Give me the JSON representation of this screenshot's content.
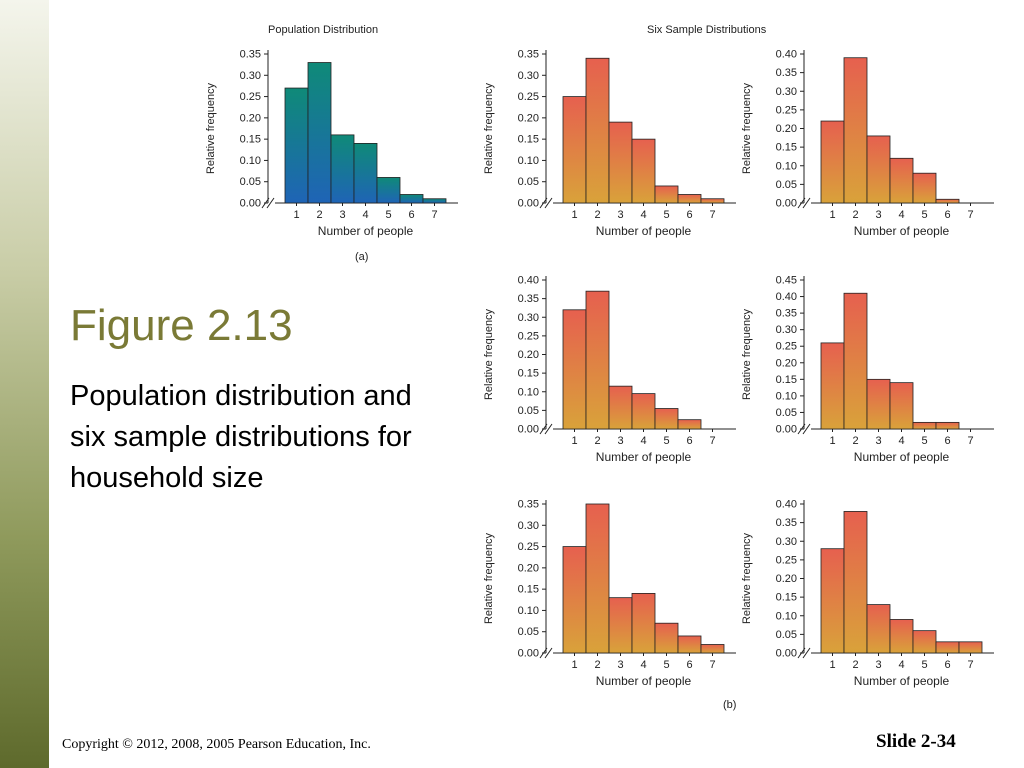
{
  "slide": {
    "title": "Figure 2.13",
    "caption": "Population distribution and six sample distributions for household size",
    "copyright": "Copyright © 2012, 2008, 2005 Pearson Education, Inc.",
    "slide_number": "Slide 2-34"
  },
  "figure": {
    "part_a_title": "Population Distribution",
    "part_b_title": "Six Sample Distributions",
    "part_a_label": "(a)",
    "part_b_label": "(b)"
  },
  "colors": {
    "population_top": "#0f8a78",
    "population_bottom": "#1f64b6",
    "sample_top": "#e6604f",
    "sample_bottom": "#d9a23a",
    "bar_edge": "#222222",
    "axis": "#222222",
    "sidebar_top": "#f4f5ec",
    "sidebar_bottom": "#5e6a2c",
    "title": "#7a7a36"
  },
  "chart_data": [
    {
      "id": "population",
      "type": "bar",
      "title": "Population Distribution",
      "categories": [
        "1",
        "2",
        "3",
        "4",
        "5",
        "6",
        "7"
      ],
      "values": [
        0.27,
        0.33,
        0.16,
        0.14,
        0.06,
        0.02,
        0.01
      ],
      "ylim": [
        0,
        0.35
      ],
      "yticks": [
        "0.00",
        "0.05",
        "0.10",
        "0.15",
        "0.20",
        "0.25",
        "0.30",
        "0.35"
      ],
      "xlabel": "Number of people",
      "ylabel": "Relative frequency",
      "color": "population",
      "grid": false
    },
    {
      "id": "sample-1",
      "type": "bar",
      "categories": [
        "1",
        "2",
        "3",
        "4",
        "5",
        "6",
        "7"
      ],
      "values": [
        0.25,
        0.34,
        0.19,
        0.15,
        0.04,
        0.02,
        0.01
      ],
      "ylim": [
        0,
        0.35
      ],
      "yticks": [
        "0.00",
        "0.05",
        "0.10",
        "0.15",
        "0.20",
        "0.25",
        "0.30",
        "0.35"
      ],
      "xlabel": "Number of people",
      "ylabel": "Relative frequency",
      "color": "sample",
      "grid": false
    },
    {
      "id": "sample-2",
      "type": "bar",
      "categories": [
        "1",
        "2",
        "3",
        "4",
        "5",
        "6",
        "7"
      ],
      "values": [
        0.22,
        0.39,
        0.18,
        0.12,
        0.08,
        0.01,
        0
      ],
      "ylim": [
        0,
        0.4
      ],
      "yticks": [
        "0.00",
        "0.05",
        "0.10",
        "0.15",
        "0.20",
        "0.25",
        "0.30",
        "0.35",
        "0.40"
      ],
      "xlabel": "Number of people",
      "ylabel": "Relative frequency",
      "color": "sample",
      "grid": false
    },
    {
      "id": "sample-3",
      "type": "bar",
      "categories": [
        "1",
        "2",
        "3",
        "4",
        "5",
        "6",
        "7"
      ],
      "values": [
        0.32,
        0.37,
        0.115,
        0.095,
        0.055,
        0.025,
        0
      ],
      "ylim": [
        0,
        0.4
      ],
      "yticks": [
        "0.00",
        "0.05",
        "0.10",
        "0.15",
        "0.20",
        "0.25",
        "0.30",
        "0.35",
        "0.40"
      ],
      "xlabel": "Number of people",
      "ylabel": "Relative frequency",
      "color": "sample",
      "grid": false
    },
    {
      "id": "sample-4",
      "type": "bar",
      "categories": [
        "1",
        "2",
        "3",
        "4",
        "5",
        "6",
        "7"
      ],
      "values": [
        0.26,
        0.41,
        0.15,
        0.14,
        0.02,
        0.02,
        0
      ],
      "ylim": [
        0,
        0.45
      ],
      "yticks": [
        "0.00",
        "0.05",
        "0.10",
        "0.15",
        "0.20",
        "0.25",
        "0.30",
        "0.35",
        "0.40",
        "0.45"
      ],
      "xlabel": "Number of people",
      "ylabel": "Relative frequency",
      "color": "sample",
      "grid": false
    },
    {
      "id": "sample-5",
      "type": "bar",
      "categories": [
        "1",
        "2",
        "3",
        "4",
        "5",
        "6",
        "7"
      ],
      "values": [
        0.25,
        0.35,
        0.13,
        0.14,
        0.07,
        0.04,
        0.02
      ],
      "ylim": [
        0,
        0.35
      ],
      "yticks": [
        "0.00",
        "0.05",
        "0.10",
        "0.15",
        "0.20",
        "0.25",
        "0.30",
        "0.35"
      ],
      "xlabel": "Number of people",
      "ylabel": "Relative frequency",
      "color": "sample",
      "grid": false
    },
    {
      "id": "sample-6",
      "type": "bar",
      "categories": [
        "1",
        "2",
        "3",
        "4",
        "5",
        "6",
        "7"
      ],
      "values": [
        0.28,
        0.38,
        0.13,
        0.09,
        0.06,
        0.03,
        0.03
      ],
      "ylim": [
        0,
        0.4
      ],
      "yticks": [
        "0.00",
        "0.05",
        "0.10",
        "0.15",
        "0.20",
        "0.25",
        "0.30",
        "0.35",
        "0.40"
      ],
      "xlabel": "Number of people",
      "ylabel": "Relative frequency",
      "color": "sample",
      "grid": false
    }
  ]
}
